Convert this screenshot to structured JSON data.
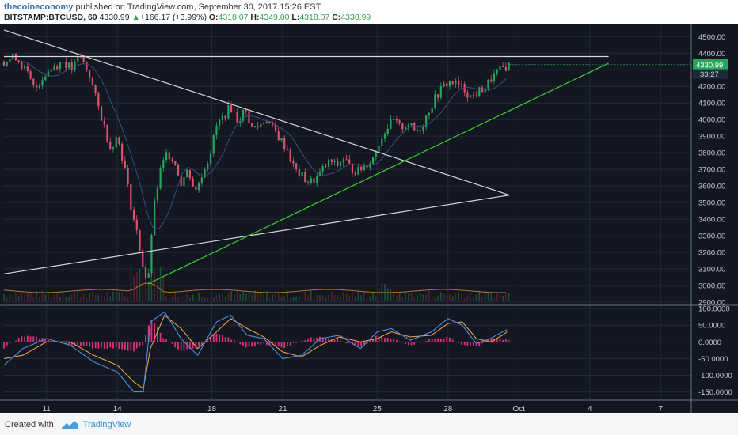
{
  "header": {
    "author": "thecoineconomy",
    "published_text": "published on TradingView.com, September 30, 2017 15:26 EST",
    "symbol": "BITSTAMP:BTCUSD, 60",
    "last": "4330.99",
    "change_arrow": "▲",
    "change": "+166.17 (+3.99%)",
    "open_label": "O:",
    "open": "4318.07",
    "high_label": "H:",
    "high": "4349.00",
    "low_label": "L:",
    "low": "4318.07",
    "close_label": "C:",
    "close": "4330.99"
  },
  "price_axis": {
    "ticks": [
      "4500.00",
      "4400.00",
      "4300.00",
      "4200.00",
      "4100.00",
      "4000.00",
      "3900.00",
      "3800.00",
      "3700.00",
      "3600.00",
      "3500.00",
      "3400.00",
      "3300.00",
      "3200.00",
      "3100.00",
      "3000.00",
      "2900.00"
    ],
    "last_price_label": "4330.99",
    "countdown_label": "33:27"
  },
  "macd_axis": {
    "ticks": [
      "100.0000",
      "50.0000",
      "0.0000",
      "-50.0000",
      "-100.0000",
      "-150.0000"
    ]
  },
  "time_axis": {
    "ticks": [
      "11",
      "14",
      "18",
      "21",
      "25",
      "28",
      "Oct",
      "4",
      "7"
    ]
  },
  "footer": {
    "created_with": "Created with",
    "brand": "TradingView"
  },
  "colors": {
    "background": "#131722",
    "bull": "#26a65b",
    "bear": "#e0506f",
    "trendline_green": "#3ccf2b",
    "trendline_white": "#d8d8d8",
    "macd_line": "#4a90e2",
    "signal_line": "#e8a04a",
    "histogram": "#e0307a",
    "last_price_badge": "#26a65b"
  },
  "chart_data": {
    "type": "candlestick",
    "symbol": "BITSTAMP:BTCUSD",
    "interval": "60",
    "price_range": [
      2900,
      4550
    ],
    "macd_range": [
      -170,
      110
    ],
    "x_dates": [
      "Sep 11",
      "Sep 14",
      "Sep 18",
      "Sep 21",
      "Sep 25",
      "Sep 28",
      "Oct 1",
      "Oct 4",
      "Oct 7"
    ],
    "price_path": [
      [
        9.2,
        4350
      ],
      [
        9.7,
        4380
      ],
      [
        10.1,
        4300
      ],
      [
        10.5,
        4180
      ],
      [
        10.9,
        4270
      ],
      [
        11.3,
        4320
      ],
      [
        11.7,
        4350
      ],
      [
        12.1,
        4300
      ],
      [
        12.4,
        4390
      ],
      [
        12.8,
        4280
      ],
      [
        13.1,
        4120
      ],
      [
        13.4,
        3980
      ],
      [
        13.7,
        3830
      ],
      [
        14.0,
        3900
      ],
      [
        14.3,
        3720
      ],
      [
        14.6,
        3460
      ],
      [
        14.9,
        3270
      ],
      [
        15.1,
        3100
      ],
      [
        15.3,
        3000
      ],
      [
        15.5,
        3420
      ],
      [
        15.8,
        3680
      ],
      [
        16.1,
        3800
      ],
      [
        16.4,
        3760
      ],
      [
        16.7,
        3620
      ],
      [
        17.0,
        3700
      ],
      [
        17.3,
        3560
      ],
      [
        17.6,
        3680
      ],
      [
        17.9,
        3780
      ],
      [
        18.2,
        3960
      ],
      [
        18.5,
        4020
      ],
      [
        18.8,
        4080
      ],
      [
        19.1,
        3990
      ],
      [
        19.4,
        4060
      ],
      [
        19.7,
        3950
      ],
      [
        20.0,
        3960
      ],
      [
        20.3,
        4010
      ],
      [
        20.6,
        3940
      ],
      [
        20.9,
        3880
      ],
      [
        21.2,
        3820
      ],
      [
        21.5,
        3700
      ],
      [
        21.8,
        3660
      ],
      [
        22.1,
        3620
      ],
      [
        22.4,
        3640
      ],
      [
        22.7,
        3700
      ],
      [
        23.0,
        3750
      ],
      [
        23.3,
        3720
      ],
      [
        23.6,
        3770
      ],
      [
        23.9,
        3700
      ],
      [
        24.2,
        3690
      ],
      [
        24.5,
        3730
      ],
      [
        24.8,
        3760
      ],
      [
        25.1,
        3870
      ],
      [
        25.4,
        3950
      ],
      [
        25.7,
        3990
      ],
      [
        26.0,
        3950
      ],
      [
        26.3,
        3980
      ],
      [
        26.6,
        3930
      ],
      [
        26.9,
        3960
      ],
      [
        27.2,
        4060
      ],
      [
        27.5,
        4140
      ],
      [
        27.8,
        4200
      ],
      [
        28.1,
        4230
      ],
      [
        28.4,
        4210
      ],
      [
        28.7,
        4180
      ],
      [
        29.0,
        4130
      ],
      [
        29.3,
        4170
      ],
      [
        29.6,
        4200
      ],
      [
        29.9,
        4260
      ],
      [
        30.3,
        4310
      ],
      [
        30.6,
        4331
      ]
    ],
    "trendlines": [
      {
        "name": "descending resistance",
        "from": [
          9.2,
          4540
        ],
        "to": [
          30.6,
          3545
        ]
      },
      {
        "name": "ascending support",
        "from": [
          9.2,
          3070
        ],
        "to": [
          30.6,
          3545
        ]
      },
      {
        "name": "green support",
        "from": [
          15.3,
          3010
        ],
        "to": [
          34.8,
          4340
        ]
      },
      {
        "name": "horizontal resistance",
        "from": [
          9.2,
          4380
        ],
        "to": [
          34.8,
          4380
        ]
      }
    ],
    "last_price": 4330.99,
    "ohlc": {
      "open": 4318.07,
      "high": 4349.0,
      "low": 4318.07,
      "close": 4330.99,
      "change": 166.17,
      "change_pct": 3.99
    },
    "indicator": {
      "type": "MACD",
      "macd_path": [
        [
          9.2,
          -70
        ],
        [
          10.0,
          -20
        ],
        [
          11.0,
          10
        ],
        [
          12.0,
          -10
        ],
        [
          13.0,
          -60
        ],
        [
          14.0,
          -90
        ],
        [
          14.7,
          -150
        ],
        [
          15.1,
          -150
        ],
        [
          15.4,
          60
        ],
        [
          16.0,
          90
        ],
        [
          16.7,
          10
        ],
        [
          17.4,
          -40
        ],
        [
          18.2,
          60
        ],
        [
          18.8,
          80
        ],
        [
          19.5,
          20
        ],
        [
          20.2,
          10
        ],
        [
          21.0,
          -50
        ],
        [
          21.8,
          -40
        ],
        [
          22.6,
          10
        ],
        [
          23.4,
          20
        ],
        [
          24.3,
          -20
        ],
        [
          25.0,
          30
        ],
        [
          25.6,
          40
        ],
        [
          26.4,
          5
        ],
        [
          27.3,
          30
        ],
        [
          28.0,
          70
        ],
        [
          28.6,
          50
        ],
        [
          29.2,
          -5
        ],
        [
          29.8,
          10
        ],
        [
          30.3,
          30
        ],
        [
          30.6,
          40
        ]
      ],
      "signal_path": [
        [
          9.2,
          -50
        ],
        [
          10.0,
          -40
        ],
        [
          11.0,
          0
        ],
        [
          12.0,
          0
        ],
        [
          13.0,
          -40
        ],
        [
          14.0,
          -70
        ],
        [
          14.7,
          -120
        ],
        [
          15.1,
          -140
        ],
        [
          15.4,
          -20
        ],
        [
          16.0,
          80
        ],
        [
          16.7,
          40
        ],
        [
          17.4,
          -20
        ],
        [
          18.2,
          30
        ],
        [
          18.8,
          70
        ],
        [
          19.5,
          40
        ],
        [
          20.2,
          15
        ],
        [
          21.0,
          -30
        ],
        [
          21.8,
          -45
        ],
        [
          22.6,
          -10
        ],
        [
          23.4,
          15
        ],
        [
          24.3,
          0
        ],
        [
          25.0,
          10
        ],
        [
          25.6,
          30
        ],
        [
          26.4,
          15
        ],
        [
          27.3,
          20
        ],
        [
          28.0,
          55
        ],
        [
          28.6,
          60
        ],
        [
          29.2,
          10
        ],
        [
          29.8,
          0
        ],
        [
          30.3,
          20
        ],
        [
          30.6,
          35
        ]
      ]
    }
  }
}
